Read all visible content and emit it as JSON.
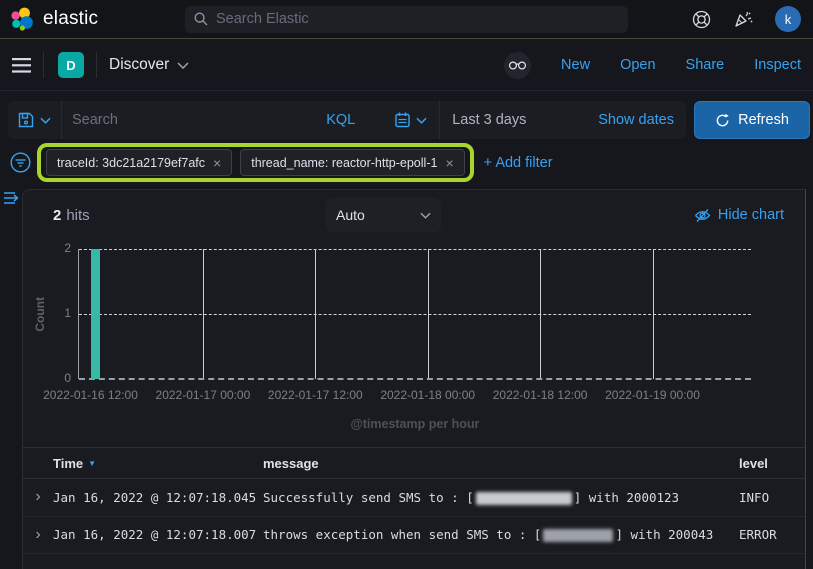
{
  "topbar": {
    "brand": "elastic",
    "search_placeholder": "Search Elastic",
    "avatar_initial": "k"
  },
  "navbar": {
    "app_badge": "D",
    "title": "Discover",
    "links": {
      "new": "New",
      "open": "Open",
      "share": "Share",
      "inspect": "Inspect"
    }
  },
  "querybar": {
    "search_placeholder": "Search",
    "language": "KQL",
    "time_range": "Last 3 days",
    "show_dates_label": "Show dates",
    "refresh_label": "Refresh"
  },
  "filterbar": {
    "pills": [
      {
        "label": "traceId: 3dc21a2179ef7afc",
        "remove": "×"
      },
      {
        "label": "thread_name: reactor-http-epoll-1",
        "remove": "×"
      }
    ],
    "add_filter_label": "+ Add filter"
  },
  "results": {
    "hits_value": "2",
    "hits_label": "hits",
    "interval_value": "Auto",
    "hide_chart_label": "Hide chart"
  },
  "chart_data": {
    "type": "bar",
    "title": "",
    "ylabel": "Count",
    "xlabel": "@timestamp per hour",
    "ylim": [
      0,
      2
    ],
    "yticks": [
      0,
      1,
      2
    ],
    "x_tick_labels": [
      "2022-01-16 12:00",
      "2022-01-17 00:00",
      "2022-01-17 12:00",
      "2022-01-18 00:00",
      "2022-01-18 12:00",
      "2022-01-19 00:00"
    ],
    "bucket_interval": "1 hour",
    "bars": [
      {
        "x": "2022-01-16 12:00",
        "count": 2
      }
    ],
    "bar_color": "#36b9a5",
    "grid": true,
    "legend": false
  },
  "table": {
    "columns": {
      "time": "Time",
      "message": "message",
      "level": "level"
    },
    "sort": {
      "column": "Time",
      "direction": "desc"
    },
    "rows": [
      {
        "time": "Jan 16, 2022 @ 12:07:18.045",
        "message_before": "Successfully send SMS to : [",
        "redacted": true,
        "message_after": "] with 2000123",
        "level": "INFO"
      },
      {
        "time": "Jan 16, 2022 @ 12:07:18.007",
        "message_before": "throws exception when send SMS to : [",
        "redacted": true,
        "message_after": "] with 200043",
        "level": "ERROR"
      }
    ]
  },
  "colors": {
    "accent_blue": "#36a2ef",
    "teal": "#36b9a5",
    "annotation_green": "#a8d431"
  }
}
